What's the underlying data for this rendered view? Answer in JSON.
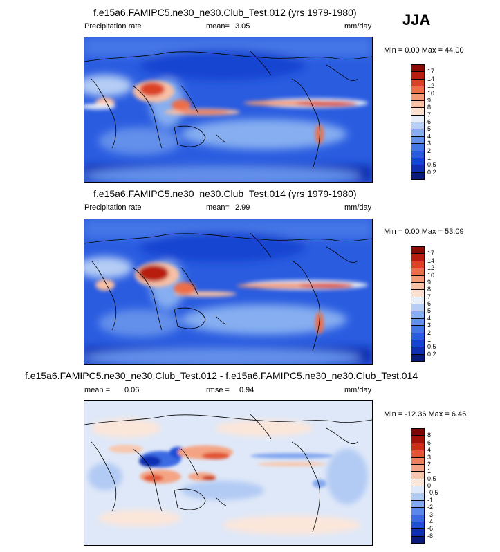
{
  "season": "JJA",
  "panels": [
    {
      "title": "f.e15a6.FAMIPC5.ne30_ne30.Club_Test.012 (yrs 1979-1980)",
      "left_label": "Precipitation rate",
      "mean_label": "mean=",
      "mean_value": "3.05",
      "units": "mm/day",
      "minmax": "Min =  0.00 Max =  44.00",
      "colorbar_labels": [
        "0.2",
        "0.5",
        "1",
        "2",
        "3",
        "4",
        "5",
        "6",
        "7",
        "8",
        "9",
        "10",
        "12",
        "14",
        "17"
      ],
      "colorbar_colors": [
        "#0a1a7a",
        "#0d2fb0",
        "#1344d2",
        "#2a5ce0",
        "#4576e6",
        "#6390ea",
        "#86aef0",
        "#b6cef5",
        "#e8eef8",
        "#fbe0d0",
        "#f8c0a4",
        "#f39a76",
        "#ec6e4a",
        "#dc4226",
        "#b81e10",
        "#8a0a06"
      ]
    },
    {
      "title": "f.e15a6.FAMIPC5.ne30_ne30.Club_Test.014 (yrs 1979-1980)",
      "left_label": "Precipitation rate",
      "mean_label": "mean=",
      "mean_value": "2.99",
      "units": "mm/day",
      "minmax": "Min =  0.00 Max =  53.09",
      "colorbar_labels": [
        "0.2",
        "0.5",
        "1",
        "2",
        "3",
        "4",
        "5",
        "6",
        "7",
        "8",
        "9",
        "10",
        "12",
        "14",
        "17"
      ],
      "colorbar_colors": [
        "#0a1a7a",
        "#0d2fb0",
        "#1344d2",
        "#2a5ce0",
        "#4576e6",
        "#6390ea",
        "#86aef0",
        "#b6cef5",
        "#e8eef8",
        "#fbe0d0",
        "#f8c0a4",
        "#f39a76",
        "#ec6e4a",
        "#dc4226",
        "#b81e10",
        "#8a0a06"
      ]
    },
    {
      "title": "f.e15a6.FAMIPC5.ne30_ne30.Club_Test.012 - f.e15a6.FAMIPC5.ne30_ne30.Club_Test.014",
      "left_label": "mean =",
      "mean_label": "",
      "mean_value": "0.06",
      "rmse_label": "rmse =",
      "rmse_value": "0.94",
      "units": "mm/day",
      "minmax": "Min = -12.36 Max =  6.46",
      "colorbar_labels": [
        "-8",
        "-6",
        "-4",
        "-3",
        "-2",
        "-1",
        "-0.5",
        "0",
        "0.5",
        "1",
        "2",
        "3",
        "4",
        "6",
        "8"
      ],
      "colorbar_colors": [
        "#0a1a7a",
        "#0d2fb0",
        "#1f4fd4",
        "#3a6ae2",
        "#5a88ea",
        "#84a8f0",
        "#b2cbf4",
        "#dfe8f8",
        "#fbe6da",
        "#f8c8ae",
        "#f4a484",
        "#ee7d5a",
        "#e25436",
        "#c82e18",
        "#a21208",
        "#7a0604"
      ]
    }
  ]
}
